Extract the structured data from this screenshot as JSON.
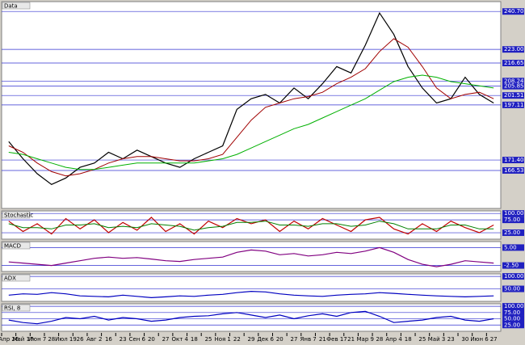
{
  "chart_data": [
    {
      "type": "line",
      "title": "Data",
      "categories": [
        "Апр 26",
        "Май 17",
        "Июн 7",
        "28",
        "Июл 19",
        "26",
        "Авг 2",
        "16",
        "23",
        "Сен 6",
        "20",
        "27",
        "Окт 4",
        "18",
        "25",
        "Ноя 1",
        "22",
        "29",
        "Дек 6",
        "20",
        "27",
        "Янв 7",
        "21",
        "Фев 17",
        "21",
        "Мар 9",
        "28",
        "Апр 4",
        "18",
        "25",
        "Май 3",
        "23",
        "30",
        "Июн 6",
        "27"
      ],
      "series": [
        {
          "color": "#000000",
          "values": [
            180,
            172,
            165,
            160,
            163,
            168,
            170,
            175,
            172,
            176,
            173,
            170,
            168,
            172,
            175,
            178,
            195,
            200,
            202,
            198,
            205,
            200,
            207,
            215,
            212,
            225,
            240,
            230,
            215,
            205,
            198,
            200,
            210,
            202,
            198
          ]
        },
        {
          "color": "#a00000",
          "values": [
            178,
            175,
            170,
            166,
            164,
            165,
            167,
            170,
            172,
            173,
            173,
            172,
            171,
            171,
            172,
            174,
            182,
            190,
            196,
            198,
            200,
            201,
            203,
            207,
            210,
            214,
            222,
            228,
            224,
            215,
            205,
            200,
            202,
            203,
            200
          ]
        },
        {
          "color": "#00b000",
          "values": [
            175,
            174,
            172,
            170,
            168,
            167,
            167,
            168,
            169,
            170,
            170,
            170,
            170,
            170,
            171,
            172,
            174,
            177,
            180,
            183,
            186,
            188,
            191,
            194,
            197,
            200,
            204,
            208,
            210,
            211,
            210,
            208,
            207,
            206,
            205
          ]
        }
      ],
      "ylim": [
        148.8,
        245.3
      ],
      "yticks": [
        {
          "value": 240.7,
          "label": "240.70"
        },
        {
          "value": 223,
          "label": "223.00"
        },
        {
          "value": 216.65,
          "label": "216.65"
        },
        {
          "value": 208.24,
          "label": "208.24"
        },
        {
          "value": 205.85,
          "label": "205.85"
        },
        {
          "value": 201.51,
          "label": "201.51"
        },
        {
          "value": 197.11,
          "label": "197.11"
        },
        {
          "value": 171.4,
          "label": "171.40"
        },
        {
          "value": 166.53,
          "label": "166.53"
        }
      ],
      "grid": true
    },
    {
      "type": "line",
      "title": "Stochastic",
      "series": [
        {
          "color": "#c00000",
          "values": [
            70,
            30,
            60,
            20,
            80,
            40,
            75,
            25,
            65,
            35,
            85,
            30,
            60,
            20,
            70,
            45,
            80,
            60,
            75,
            30,
            70,
            40,
            80,
            55,
            30,
            75,
            85,
            40,
            20,
            60,
            30,
            70,
            45,
            25,
            55
          ]
        },
        {
          "color": "#008000",
          "values": [
            60,
            45,
            45,
            40,
            55,
            55,
            60,
            45,
            50,
            45,
            60,
            55,
            50,
            35,
            45,
            50,
            65,
            65,
            70,
            55,
            55,
            50,
            60,
            60,
            50,
            55,
            70,
            60,
            40,
            40,
            40,
            55,
            55,
            40,
            40
          ]
        }
      ],
      "ylim": [
        0,
        110
      ],
      "yticks": [
        {
          "value": 100,
          "label": "100.00"
        },
        {
          "value": 75,
          "label": "75.00"
        },
        {
          "value": 25,
          "label": "25.00"
        }
      ],
      "grid": true
    },
    {
      "type": "line",
      "title": "MACD",
      "series": [
        {
          "color": "#800080",
          "values": [
            -1,
            -1.5,
            -2,
            -2.5,
            -1.5,
            -0.5,
            0.5,
            1,
            0.5,
            0.8,
            0.2,
            -0.5,
            -0.8,
            0,
            0.5,
            1,
            3,
            4,
            3.5,
            2,
            2.5,
            1.5,
            2,
            3,
            2.5,
            3.5,
            5,
            3,
            0,
            -2,
            -3,
            -2,
            -0.5,
            -1,
            -1.5
          ]
        }
      ],
      "ylim": [
        -5,
        7.5
      ],
      "yticks": [
        {
          "value": 5,
          "label": "5.00"
        },
        {
          "value": -2.5,
          "label": "-2.50"
        }
      ],
      "grid": true
    },
    {
      "type": "line",
      "title": "ADX",
      "series": [
        {
          "color": "#0000c0",
          "values": [
            25,
            30,
            28,
            35,
            30,
            22,
            20,
            18,
            25,
            20,
            15,
            18,
            22,
            20,
            25,
            28,
            35,
            40,
            38,
            30,
            25,
            22,
            20,
            25,
            28,
            30,
            35,
            32,
            28,
            25,
            22,
            20,
            18,
            20,
            22
          ]
        }
      ],
      "ylim": [
        0,
        110
      ],
      "yticks": [
        {
          "value": 100,
          "label": "100.00"
        },
        {
          "value": 50,
          "label": "50.00"
        }
      ],
      "grid": true
    },
    {
      "type": "line",
      "title": "RSI, 8",
      "series": [
        {
          "color": "#0000c0",
          "values": [
            45,
            35,
            30,
            40,
            55,
            50,
            60,
            45,
            55,
            50,
            40,
            45,
            55,
            60,
            62,
            70,
            75,
            65,
            55,
            65,
            50,
            62,
            70,
            60,
            75,
            80,
            60,
            35,
            40,
            45,
            55,
            60,
            45,
            40,
            50
          ]
        }
      ],
      "ylim": [
        0,
        110
      ],
      "yticks": [
        {
          "value": 100,
          "label": "100.00"
        },
        {
          "value": 75,
          "label": "75.00"
        },
        {
          "value": 50,
          "label": "50.00"
        },
        {
          "value": 25,
          "label": "25.00"
        }
      ],
      "grid": true
    }
  ]
}
